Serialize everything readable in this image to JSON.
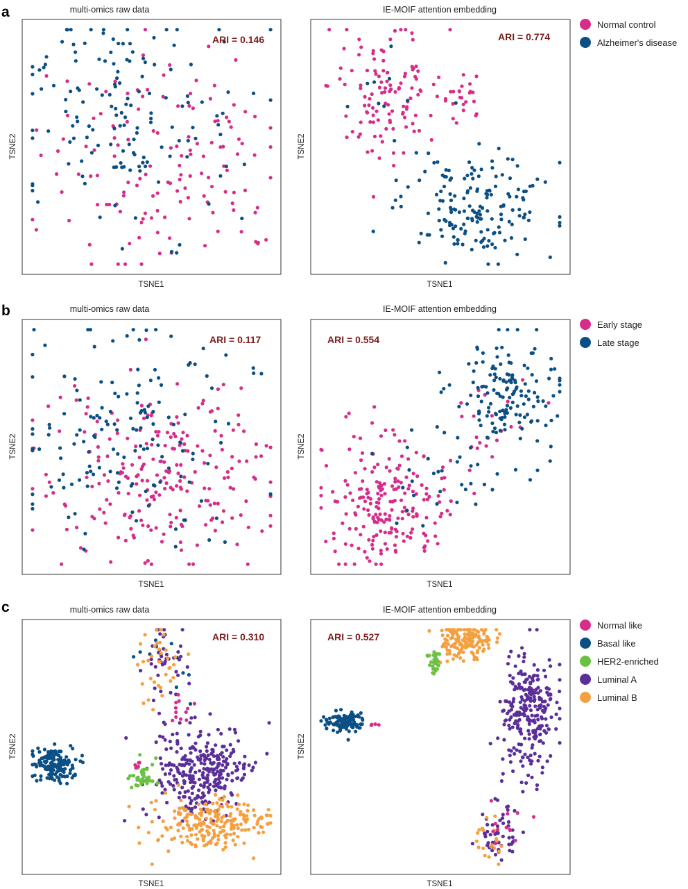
{
  "colors": {
    "normal_control": "#d62d8a",
    "alzheimers": "#0b4f84",
    "early_stage": "#d62d8a",
    "late_stage": "#0b4f84",
    "normal_like": "#d62d8a",
    "basal_like": "#0b4f84",
    "her2_enriched": "#6cc043",
    "luminal_a": "#5b2f99",
    "luminal_b": "#f5a040",
    "ari_text": "#7b1c1c"
  },
  "panels": [
    {
      "label": "a",
      "legend": [
        {
          "name": "Normal control",
          "color": "#d62d8a"
        },
        {
          "name": "Alzheimer's disease",
          "color": "#0b4f84"
        }
      ],
      "plots": [
        {
          "title": "multi-omics raw data",
          "ari": "ARI = 0.146",
          "xlabel": "TSNE1",
          "ylabel": "TSNE2"
        },
        {
          "title": "IE-MOIF attention embedding",
          "ari": "ARI = 0.774",
          "xlabel": "TSNE1",
          "ylabel": "TSNE2"
        }
      ]
    },
    {
      "label": "b",
      "legend": [
        {
          "name": "Early stage",
          "color": "#d62d8a"
        },
        {
          "name": "Late stage",
          "color": "#0b4f84"
        }
      ],
      "plots": [
        {
          "title": "multi-omics raw data",
          "ari": "ARI = 0.117",
          "xlabel": "TSNE1",
          "ylabel": "TSNE2"
        },
        {
          "title": "IE-MOIF attention embedding",
          "ari": "ARI = 0.554",
          "xlabel": "TSNE1",
          "ylabel": "TSNE2"
        }
      ]
    },
    {
      "label": "c",
      "legend": [
        {
          "name": "Normal like",
          "color": "#d62d8a"
        },
        {
          "name": "Basal like",
          "color": "#0b4f84"
        },
        {
          "name": "HER2-enriched",
          "color": "#6cc043"
        },
        {
          "name": "Luminal A",
          "color": "#5b2f99"
        },
        {
          "name": "Luminal B",
          "color": "#f5a040"
        }
      ],
      "plots": [
        {
          "title": "multi-omics raw data",
          "ari": "ARI = 0.310",
          "xlabel": "TSNE1",
          "ylabel": "TSNE2"
        },
        {
          "title": "IE-MOIF attention embedding",
          "ari": "ARI = 0.527",
          "xlabel": "TSNE1",
          "ylabel": "TSNE2"
        }
      ]
    }
  ],
  "chart_data": [
    {
      "type": "scatter",
      "title": "multi-omics raw data",
      "xlabel": "TSNE1",
      "ylabel": "TSNE2",
      "annotation": "ARI = 0.146",
      "grid": false,
      "series": [
        {
          "name": "Normal control",
          "color": "#d62d8a",
          "clusters": [
            {
              "cx": 0.55,
              "cy": 0.55,
              "sx": 0.24,
              "sy": 0.22,
              "n": 140
            }
          ]
        },
        {
          "name": "Alzheimer's disease",
          "color": "#0b4f84",
          "clusters": [
            {
              "cx": 0.4,
              "cy": 0.38,
              "sx": 0.22,
              "sy": 0.23,
              "n": 150
            }
          ]
        }
      ]
    },
    {
      "type": "scatter",
      "title": "IE-MOIF attention embedding",
      "xlabel": "TSNE1",
      "ylabel": "TSNE2",
      "annotation": "ARI = 0.774",
      "grid": false,
      "series": [
        {
          "name": "Normal control",
          "color": "#d62d8a",
          "clusters": [
            {
              "cx": 0.29,
              "cy": 0.27,
              "sx": 0.11,
              "sy": 0.13,
              "n": 115
            },
            {
              "cx": 0.58,
              "cy": 0.3,
              "sx": 0.04,
              "sy": 0.05,
              "n": 25
            }
          ]
        },
        {
          "name": "Alzheimer's disease",
          "color": "#0b4f84",
          "clusters": [
            {
              "cx": 0.64,
              "cy": 0.73,
              "sx": 0.14,
              "sy": 0.1,
              "n": 170
            },
            {
              "cx": 0.26,
              "cy": 0.25,
              "sx": 0.07,
              "sy": 0.08,
              "n": 8
            }
          ]
        }
      ]
    },
    {
      "type": "scatter",
      "title": "multi-omics raw data",
      "xlabel": "TSNE1",
      "ylabel": "TSNE2",
      "annotation": "ARI = 0.117",
      "grid": false,
      "series": [
        {
          "name": "Early stage",
          "color": "#d62d8a",
          "clusters": [
            {
              "cx": 0.52,
              "cy": 0.62,
              "sx": 0.22,
              "sy": 0.19,
              "n": 230
            }
          ]
        },
        {
          "name": "Late stage",
          "color": "#0b4f84",
          "clusters": [
            {
              "cx": 0.4,
              "cy": 0.42,
              "sx": 0.23,
              "sy": 0.22,
              "n": 150
            }
          ]
        }
      ]
    },
    {
      "type": "scatter",
      "title": "IE-MOIF attention embedding",
      "xlabel": "TSNE1",
      "ylabel": "TSNE2",
      "annotation": "ARI = 0.554",
      "grid": false,
      "series": [
        {
          "name": "Early stage",
          "color": "#d62d8a",
          "clusters": [
            {
              "cx": 0.3,
              "cy": 0.72,
              "sx": 0.12,
              "sy": 0.12,
              "n": 210
            },
            {
              "cx": 0.7,
              "cy": 0.4,
              "sx": 0.08,
              "sy": 0.1,
              "n": 20
            }
          ]
        },
        {
          "name": "Late stage",
          "color": "#0b4f84",
          "clusters": [
            {
              "cx": 0.76,
              "cy": 0.28,
              "sx": 0.1,
              "sy": 0.12,
              "n": 150
            },
            {
              "cx": 0.48,
              "cy": 0.6,
              "sx": 0.1,
              "sy": 0.08,
              "n": 30
            }
          ]
        }
      ]
    },
    {
      "type": "scatter",
      "title": "multi-omics raw data",
      "xlabel": "TSNE1",
      "ylabel": "TSNE2",
      "annotation": "ARI = 0.310",
      "grid": false,
      "series": [
        {
          "name": "Basal like",
          "color": "#0b4f84",
          "clusters": [
            {
              "cx": 0.12,
              "cy": 0.57,
              "sx": 0.04,
              "sy": 0.035,
              "n": 150
            },
            {
              "cx": 0.55,
              "cy": 0.17,
              "sx": 0.05,
              "sy": 0.08,
              "n": 12
            }
          ]
        },
        {
          "name": "Luminal A",
          "color": "#5b2f99",
          "clusters": [
            {
              "cx": 0.7,
              "cy": 0.6,
              "sx": 0.09,
              "sy": 0.09,
              "n": 300
            },
            {
              "cx": 0.55,
              "cy": 0.17,
              "sx": 0.04,
              "sy": 0.08,
              "n": 40
            }
          ]
        },
        {
          "name": "Luminal B",
          "color": "#f5a040",
          "clusters": [
            {
              "cx": 0.72,
              "cy": 0.8,
              "sx": 0.11,
              "sy": 0.05,
              "n": 220
            },
            {
              "cx": 0.53,
              "cy": 0.17,
              "sx": 0.04,
              "sy": 0.08,
              "n": 35
            }
          ]
        },
        {
          "name": "HER2-enriched",
          "color": "#6cc043",
          "clusters": [
            {
              "cx": 0.46,
              "cy": 0.62,
              "sx": 0.025,
              "sy": 0.03,
              "n": 40
            }
          ]
        },
        {
          "name": "Normal like",
          "color": "#d62d8a",
          "clusters": [
            {
              "cx": 0.6,
              "cy": 0.36,
              "sx": 0.02,
              "sy": 0.03,
              "n": 12
            },
            {
              "cx": 0.44,
              "cy": 0.57,
              "sx": 0.01,
              "sy": 0.01,
              "n": 5
            }
          ]
        }
      ]
    },
    {
      "type": "scatter",
      "title": "IE-MOIF attention embedding",
      "xlabel": "TSNE1",
      "ylabel": "TSNE2",
      "annotation": "ARI = 0.527",
      "grid": false,
      "series": [
        {
          "name": "Basal like",
          "color": "#0b4f84",
          "clusters": [
            {
              "cx": 0.13,
              "cy": 0.4,
              "sx": 0.04,
              "sy": 0.02,
              "n": 110
            }
          ]
        },
        {
          "name": "Luminal A",
          "color": "#5b2f99",
          "clusters": [
            {
              "cx": 0.84,
              "cy": 0.38,
              "sx": 0.05,
              "sy": 0.12,
              "n": 260
            },
            {
              "cx": 0.72,
              "cy": 0.84,
              "sx": 0.04,
              "sy": 0.07,
              "n": 50
            }
          ]
        },
        {
          "name": "Luminal B",
          "color": "#f5a040",
          "clusters": [
            {
              "cx": 0.6,
              "cy": 0.08,
              "sx": 0.05,
              "sy": 0.04,
              "n": 150
            },
            {
              "cx": 0.7,
              "cy": 0.88,
              "sx": 0.03,
              "sy": 0.04,
              "n": 20
            }
          ]
        },
        {
          "name": "HER2-enriched",
          "color": "#6cc043",
          "clusters": [
            {
              "cx": 0.48,
              "cy": 0.16,
              "sx": 0.015,
              "sy": 0.02,
              "n": 30
            }
          ]
        },
        {
          "name": "Normal like",
          "color": "#d62d8a",
          "clusters": [
            {
              "cx": 0.78,
              "cy": 0.8,
              "sx": 0.05,
              "sy": 0.05,
              "n": 12
            },
            {
              "cx": 0.25,
              "cy": 0.41,
              "sx": 0.01,
              "sy": 0.005,
              "n": 4
            }
          ]
        }
      ]
    }
  ]
}
